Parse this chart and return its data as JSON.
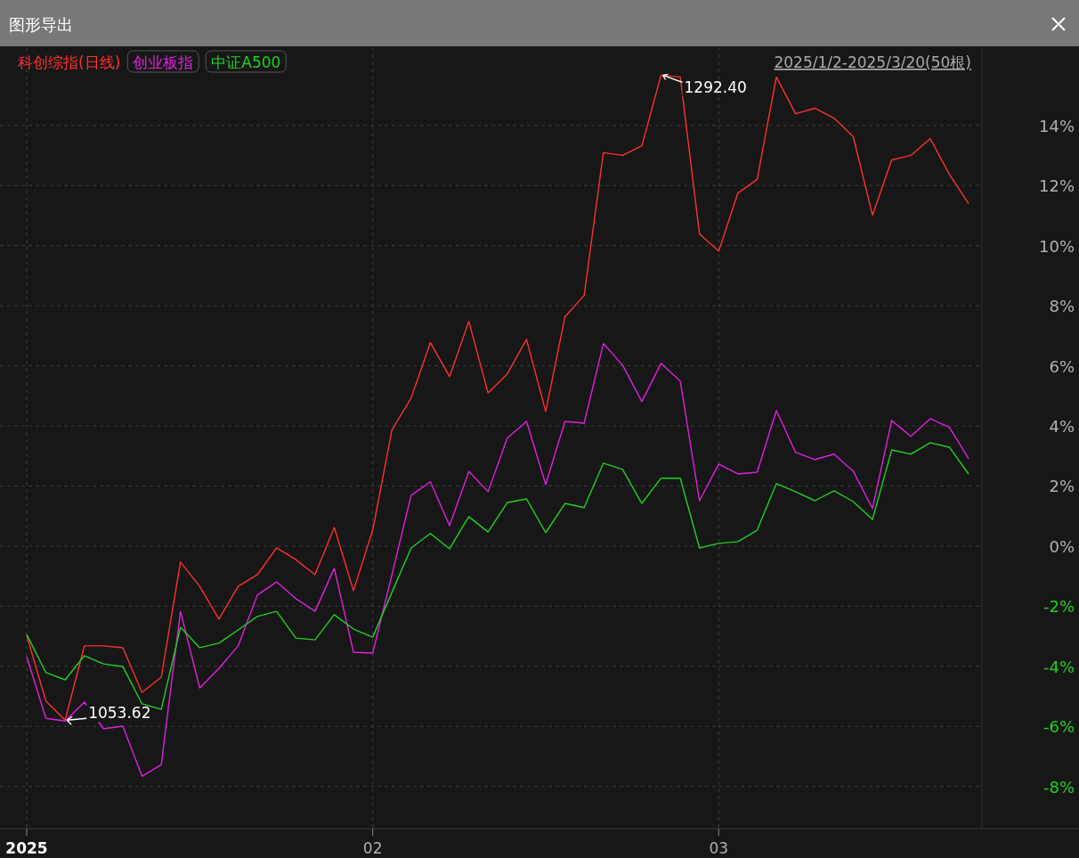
{
  "chart_data": {
    "type": "line",
    "title": "图形导出",
    "categories": [
      "2025",
      null,
      null,
      null,
      null,
      null,
      null,
      null,
      null,
      null,
      null,
      null,
      null,
      null,
      null,
      null,
      null,
      null,
      "02",
      null,
      null,
      null,
      null,
      null,
      null,
      null,
      null,
      null,
      null,
      null,
      null,
      null,
      null,
      null,
      null,
      null,
      "03",
      null,
      null,
      null,
      null,
      null,
      null,
      null,
      null,
      null,
      null,
      null,
      null,
      null
    ],
    "series": [
      {
        "name": "科创综指(日线)",
        "color": "#ff3030",
        "values": [
          -2.97,
          -5.16,
          -5.79,
          -3.32,
          -3.32,
          -3.38,
          -4.87,
          -4.36,
          -0.53,
          -1.34,
          -2.43,
          -1.34,
          -0.95,
          -0.06,
          -0.45,
          -0.95,
          0.62,
          -1.48,
          0.53,
          3.86,
          4.93,
          6.77,
          5.64,
          7.48,
          5.1,
          5.73,
          6.88,
          4.48,
          7.63,
          8.34,
          13.09,
          13.0,
          13.32,
          15.67,
          15.61,
          10.39,
          9.82,
          11.75,
          12.2,
          15.61,
          14.39,
          14.57,
          14.24,
          13.62,
          11.01,
          12.85,
          13.0,
          13.56,
          12.37,
          11.39
        ]
      },
      {
        "name": "创业板指",
        "color": "#e020e0",
        "values": [
          -3.68,
          -5.73,
          -5.82,
          -5.19,
          -6.08,
          -5.99,
          -7.66,
          -7.27,
          -2.17,
          -4.72,
          -4.07,
          -3.32,
          -1.63,
          -1.19,
          -1.75,
          -2.17,
          -0.74,
          -3.53,
          -3.56,
          -0.95,
          1.69,
          2.14,
          0.68,
          2.49,
          1.81,
          3.59,
          4.15,
          2.05,
          4.15,
          4.09,
          6.74,
          6.02,
          4.81,
          6.08,
          5.49,
          1.51,
          2.73,
          2.4,
          2.46,
          4.51,
          3.12,
          2.88,
          3.06,
          2.49,
          1.25,
          4.18,
          3.65,
          4.24,
          3.95,
          2.91
        ]
      },
      {
        "name": "中证A500",
        "color": "#20d020",
        "values": [
          -2.94,
          -4.21,
          -4.45,
          -3.65,
          -3.92,
          -4.01,
          -5.25,
          -5.43,
          -2.7,
          -3.38,
          -3.23,
          -2.79,
          -2.34,
          -2.17,
          -3.06,
          -3.12,
          -2.28,
          -2.76,
          -3.03,
          -1.54,
          -0.06,
          0.42,
          -0.09,
          0.98,
          0.47,
          1.45,
          1.57,
          0.45,
          1.42,
          1.28,
          2.76,
          2.55,
          1.42,
          2.26,
          2.26,
          -0.06,
          0.09,
          0.15,
          0.53,
          2.08,
          1.81,
          1.51,
          1.84,
          1.48,
          0.89,
          3.2,
          3.06,
          3.44,
          3.29,
          2.4
        ]
      }
    ],
    "ylim": [
      -9.4,
      16.6
    ],
    "yticks": [
      {
        "value": -8,
        "label": "-8%"
      },
      {
        "value": -6,
        "label": "-6%"
      },
      {
        "value": -4,
        "label": "-4%"
      },
      {
        "value": -2,
        "label": "-2%"
      },
      {
        "value": 0,
        "label": "0%"
      },
      {
        "value": 2,
        "label": "2%"
      },
      {
        "value": 4,
        "label": "4%"
      },
      {
        "value": 6,
        "label": "6%"
      },
      {
        "value": 8,
        "label": "8%"
      },
      {
        "value": 10,
        "label": "10%"
      },
      {
        "value": 12,
        "label": "12%"
      },
      {
        "value": 14,
        "label": "14%"
      }
    ],
    "grid": true,
    "legend": "top left",
    "marker": "none",
    "line_style": "solid",
    "annotations": [
      "2025/1/2-2025/3/20(50根)",
      "1053.62",
      "1292.40"
    ]
  }
}
